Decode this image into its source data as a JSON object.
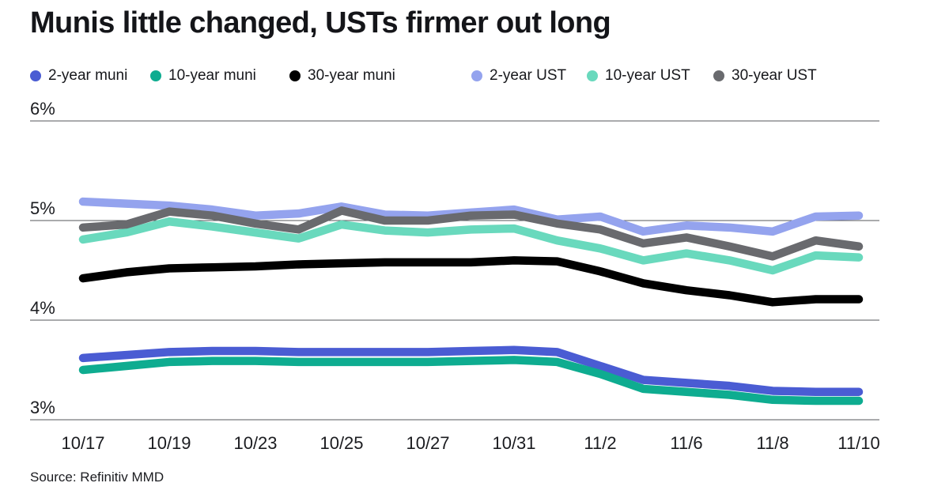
{
  "title": "Munis little changed, USTs firmer out long",
  "source": "Source: Refinitiv MMD",
  "chart_data": {
    "type": "line",
    "title": "Munis little changed, USTs firmer out long",
    "grid": "horizontal",
    "legend_position": "top",
    "ylim": [
      3,
      6
    ],
    "y_ticks": [
      {
        "label": "6%",
        "value": 6
      },
      {
        "label": "5%",
        "value": 5
      },
      {
        "label": "4%",
        "value": 4
      },
      {
        "label": "3%",
        "value": 3
      }
    ],
    "x": [
      "10/17",
      "10/18",
      "10/19",
      "10/20",
      "10/23",
      "10/24",
      "10/25",
      "10/26",
      "10/27",
      "10/30",
      "10/31",
      "11/1",
      "11/2",
      "11/3",
      "11/6",
      "11/7",
      "11/8",
      "11/9",
      "11/10"
    ],
    "x_tick_labels": [
      "10/17",
      "10/19",
      "10/23",
      "10/25",
      "10/27",
      "10/31",
      "11/2",
      "11/6",
      "11/8",
      "11/10"
    ],
    "x_tick_indices": [
      0,
      2,
      4,
      6,
      8,
      10,
      12,
      14,
      16,
      18
    ],
    "series": [
      {
        "name": "2-year muni",
        "color": "#4a5cd3",
        "values": [
          3.62,
          3.65,
          3.68,
          3.69,
          3.69,
          3.68,
          3.68,
          3.68,
          3.68,
          3.69,
          3.7,
          3.68,
          3.54,
          3.4,
          3.37,
          3.34,
          3.29,
          3.28,
          3.28
        ]
      },
      {
        "name": "10-year muni",
        "color": "#0eac90",
        "values": [
          3.5,
          3.54,
          3.58,
          3.59,
          3.59,
          3.58,
          3.58,
          3.58,
          3.58,
          3.59,
          3.6,
          3.58,
          3.46,
          3.31,
          3.28,
          3.25,
          3.2,
          3.19,
          3.19
        ]
      },
      {
        "name": "30-year muni",
        "color": "#000000",
        "values": [
          4.42,
          4.48,
          4.52,
          4.53,
          4.54,
          4.56,
          4.57,
          4.58,
          4.58,
          4.58,
          4.6,
          4.59,
          4.49,
          4.37,
          4.3,
          4.25,
          4.18,
          4.21,
          4.21
        ]
      },
      {
        "name": "2-year UST",
        "color": "#94a3ee",
        "values": [
          5.19,
          5.17,
          5.15,
          5.11,
          5.05,
          5.07,
          5.14,
          5.06,
          5.05,
          5.08,
          5.11,
          5.01,
          5.04,
          4.89,
          4.95,
          4.93,
          4.89,
          5.04,
          5.05
        ]
      },
      {
        "name": "10-year UST",
        "color": "#69d9bd",
        "values": [
          4.81,
          4.88,
          4.99,
          4.94,
          4.88,
          4.82,
          4.96,
          4.9,
          4.88,
          4.91,
          4.92,
          4.8,
          4.72,
          4.6,
          4.67,
          4.6,
          4.5,
          4.65,
          4.63
        ]
      },
      {
        "name": "30-year UST",
        "color": "#696a6e",
        "values": [
          4.93,
          4.96,
          5.09,
          5.05,
          4.97,
          4.91,
          5.1,
          5.0,
          5.0,
          5.05,
          5.06,
          4.97,
          4.91,
          4.77,
          4.83,
          4.74,
          4.64,
          4.8,
          4.74
        ]
      }
    ]
  }
}
